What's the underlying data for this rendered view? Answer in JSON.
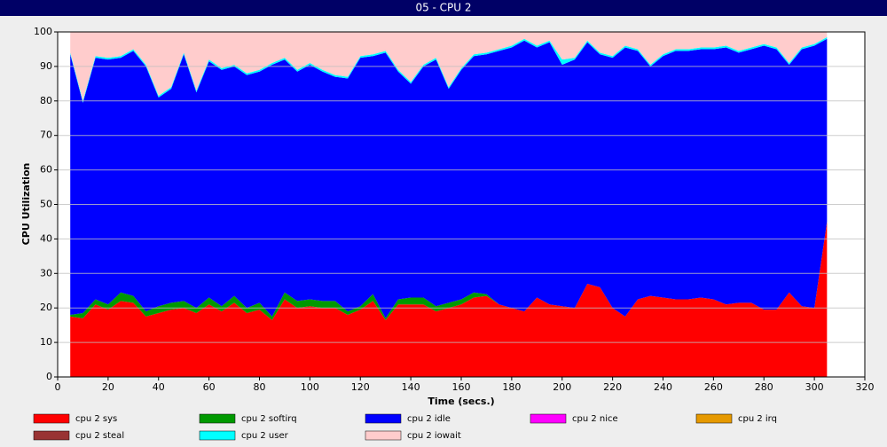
{
  "chart_data": {
    "type": "stacked_area",
    "title": "05 - CPU 2",
    "x_label": "Time (secs.)",
    "y_label": "CPU Utilization",
    "xlim": [
      0,
      320
    ],
    "xticks": [
      0,
      20,
      40,
      60,
      80,
      100,
      120,
      140,
      160,
      180,
      200,
      220,
      240,
      260,
      280,
      300,
      320
    ],
    "ylim": [
      0,
      100
    ],
    "yticks": [
      0,
      10,
      20,
      30,
      40,
      50,
      60,
      70,
      80,
      90,
      100
    ],
    "grid": true,
    "x": [
      5,
      10,
      15,
      20,
      25,
      30,
      35,
      40,
      45,
      50,
      55,
      60,
      65,
      70,
      75,
      80,
      85,
      90,
      95,
      100,
      105,
      110,
      115,
      120,
      125,
      130,
      135,
      140,
      145,
      150,
      155,
      160,
      165,
      170,
      175,
      180,
      185,
      190,
      195,
      200,
      205,
      210,
      215,
      220,
      225,
      230,
      235,
      240,
      245,
      250,
      255,
      260,
      265,
      270,
      275,
      280,
      285,
      290,
      295,
      300,
      305
    ],
    "series": [
      {
        "name": "cpu 2 sys",
        "color": "#ff0000",
        "values": [
          17.5,
          17,
          21,
          19.5,
          22,
          21.5,
          17.5,
          18.5,
          19.5,
          20,
          18.5,
          21,
          19,
          21.5,
          18.5,
          19.5,
          16.5,
          22.5,
          20,
          20.5,
          20,
          20,
          18,
          19.5,
          22,
          16.5,
          21,
          21,
          21,
          19,
          20,
          21,
          23,
          23.5,
          21,
          20,
          19,
          23,
          21,
          20.5,
          20,
          27,
          26,
          20,
          17.5,
          22.5,
          23.5,
          23,
          22.5,
          22.5,
          23,
          22.5,
          21,
          21.5,
          21.5,
          19.5,
          19.5,
          24.5,
          20.5,
          20,
          45
        ]
      },
      {
        "name": "cpu 2 softirq",
        "color": "#009900",
        "values": [
          0.5,
          1.5,
          1.5,
          1.5,
          2.5,
          2,
          1.5,
          2,
          2,
          2,
          1.5,
          2,
          1.5,
          2,
          1.5,
          2,
          1,
          2,
          2,
          2,
          2,
          2,
          1,
          1,
          2,
          0.5,
          1.5,
          2,
          2,
          1.5,
          1.5,
          1.5,
          1.5,
          0.5,
          0,
          0,
          0,
          0,
          0,
          0,
          0,
          0,
          0,
          0,
          0,
          0,
          0,
          0,
          0,
          0,
          0,
          0,
          0,
          0,
          0,
          0,
          0,
          0,
          0,
          0,
          0
        ]
      },
      {
        "name": "cpu 2 idle",
        "color": "#0000ff",
        "values": [
          75.5,
          61,
          70,
          71,
          68,
          71,
          71,
          60.5,
          62,
          71.5,
          62.5,
          68.5,
          68.5,
          66.5,
          67.5,
          67,
          73,
          67.5,
          66.5,
          68,
          66.5,
          65,
          67.5,
          72,
          69,
          77,
          66,
          62,
          67,
          71.5,
          62,
          66.5,
          68.5,
          69.5,
          73.5,
          75.5,
          78.5,
          72.5,
          76,
          70,
          72,
          70,
          67.5,
          72.5,
          78,
          72,
          66.5,
          70,
          72,
          72,
          72,
          72.5,
          74.5,
          72.5,
          73.5,
          76.5,
          75.5,
          66,
          74.5,
          76,
          53
        ]
      },
      {
        "name": "cpu 2 nice",
        "color": "#ff00ff",
        "values": [
          0,
          0,
          0,
          0,
          0,
          0,
          0,
          0,
          0,
          0,
          0,
          0,
          0,
          0,
          0,
          0,
          0,
          0,
          0,
          0,
          0,
          0,
          0,
          0,
          0,
          0,
          0,
          0,
          0,
          0,
          0,
          0,
          0,
          0,
          0,
          0,
          0,
          0,
          0,
          0,
          0,
          0,
          0,
          0,
          0,
          0,
          0,
          0,
          0,
          0,
          0,
          0,
          0,
          0,
          0,
          0,
          0,
          0,
          0,
          0,
          0
        ]
      },
      {
        "name": "cpu 2 irq",
        "color": "#e69900",
        "values": [
          0,
          0,
          0,
          0,
          0,
          0,
          0,
          0,
          0,
          0,
          0,
          0,
          0,
          0,
          0,
          0,
          0,
          0,
          0,
          0,
          0,
          0,
          0,
          0,
          0,
          0,
          0,
          0,
          0,
          0,
          0,
          0,
          0,
          0,
          0,
          0,
          0,
          0,
          0,
          0,
          0,
          0,
          0,
          0,
          0,
          0,
          0,
          0,
          0,
          0,
          0,
          0,
          0,
          0,
          0,
          0,
          0,
          0,
          0,
          0,
          0
        ]
      },
      {
        "name": "cpu 2 steal",
        "color": "#993333",
        "values": [
          0,
          0,
          0,
          0,
          0,
          0,
          0,
          0,
          0,
          0,
          0,
          0,
          0,
          0,
          0,
          0,
          0,
          0,
          0,
          0,
          0,
          0,
          0,
          0,
          0,
          0,
          0,
          0,
          0,
          0,
          0,
          0,
          0,
          0,
          0,
          0,
          0,
          0,
          0,
          0,
          0,
          0,
          0,
          0,
          0,
          0,
          0,
          0,
          0,
          0,
          0,
          0,
          0,
          0,
          0,
          0,
          0,
          0,
          0,
          0,
          0
        ]
      },
      {
        "name": "cpu 2 user",
        "color": "#00ffff",
        "values": [
          0.5,
          0.5,
          0.5,
          0.5,
          0.5,
          0.5,
          0.5,
          0.5,
          0.5,
          0.5,
          0.5,
          0.5,
          0.5,
          0.5,
          0.5,
          0.5,
          0.5,
          0.5,
          0.5,
          0.5,
          0.5,
          0.5,
          0.5,
          0.5,
          0.5,
          0.5,
          0.5,
          0.5,
          0.5,
          0.5,
          0.5,
          0.5,
          0.5,
          0.5,
          0.5,
          0.5,
          0.5,
          0.5,
          0.5,
          1.5,
          0.5,
          0.5,
          0.5,
          0.5,
          0.5,
          0.5,
          0.5,
          0.5,
          0.5,
          0.5,
          0.5,
          0.5,
          0.5,
          0.5,
          0.5,
          0.5,
          0.5,
          0.5,
          0.5,
          0.5,
          0.5
        ]
      },
      {
        "name": "cpu 2 iowait",
        "color": "#ffcccc",
        "values": [
          6,
          20,
          7,
          7.5,
          7,
          5,
          9.5,
          18.5,
          16,
          6,
          17,
          8,
          10.5,
          9.5,
          12,
          11,
          9,
          7.5,
          11,
          9,
          11,
          12.5,
          13,
          7,
          6.5,
          5.5,
          11,
          14.5,
          9.5,
          7.5,
          16,
          10.5,
          6.5,
          6,
          5,
          4,
          2,
          4,
          2.5,
          8,
          7.5,
          2.5,
          6,
          7,
          4,
          5,
          9.5,
          6.5,
          5,
          5,
          4.5,
          4.5,
          4,
          5.5,
          4.5,
          3.5,
          4.5,
          9,
          4.5,
          3.5,
          1.5
        ]
      }
    ]
  }
}
